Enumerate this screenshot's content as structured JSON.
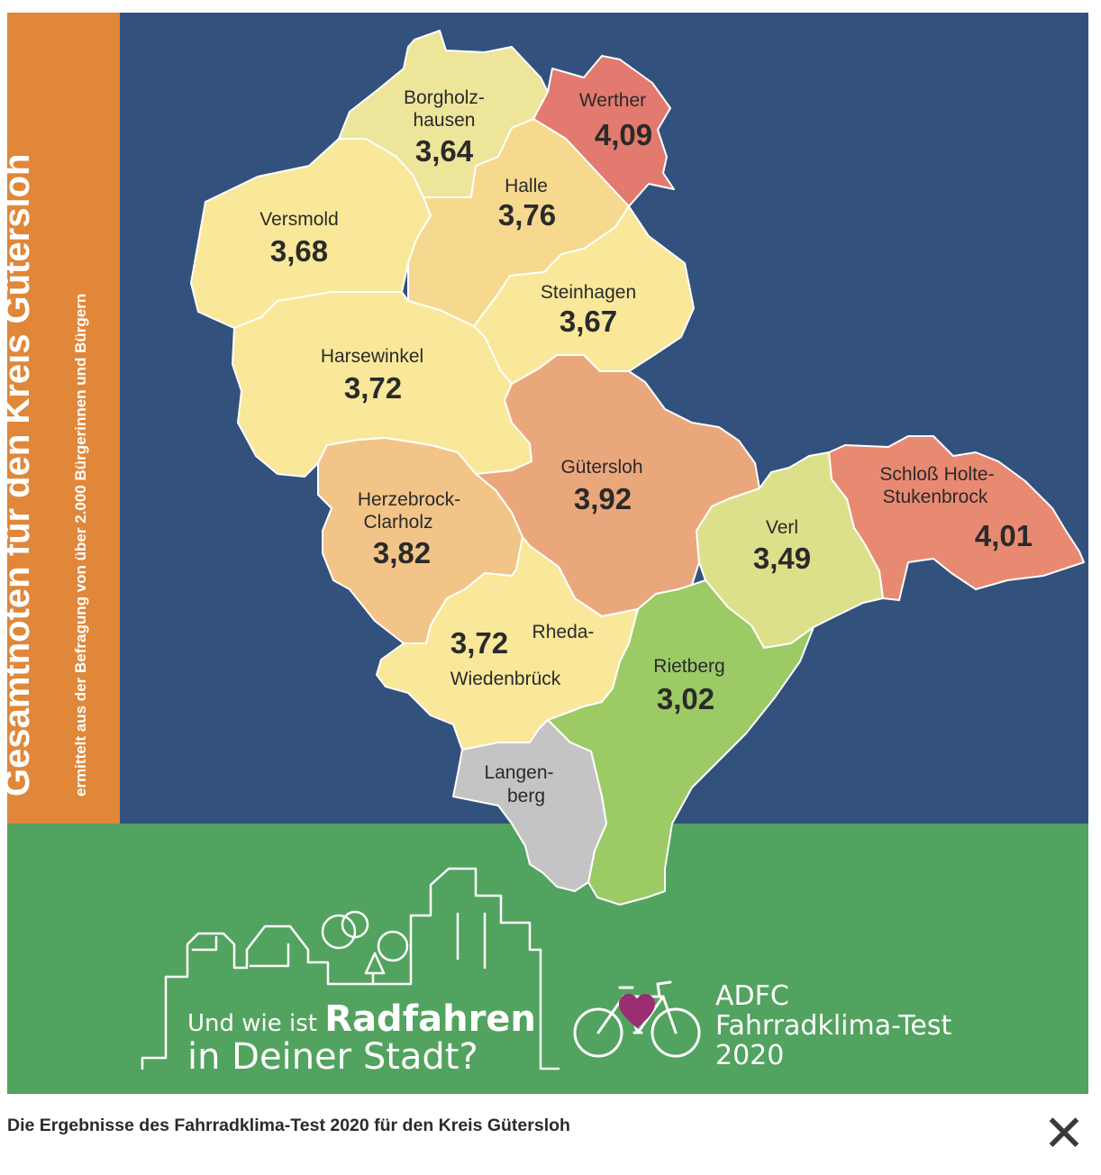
{
  "sidebar": {
    "title": "Gesamtnoten für den Kreis Gütersloh",
    "subtitle": "ermittelt aus der Befragung von über 2.000 Bürgerinnen und Bürgern"
  },
  "regions": {
    "borgholzhausen": {
      "name_line1": "Borgholz-",
      "name_line2": "hausen",
      "score": "3,64",
      "fill": "#EDE59A"
    },
    "werther": {
      "name": "Werther",
      "score": "4,09",
      "fill": "#E27A6F"
    },
    "versmold": {
      "name": "Versmold",
      "score": "3,68",
      "fill": "#F9E89A"
    },
    "halle": {
      "name": "Halle",
      "score": "3,76",
      "fill": "#F6D98E"
    },
    "steinhagen": {
      "name": "Steinhagen",
      "score": "3,67",
      "fill": "#F9E89A"
    },
    "harsewinkel": {
      "name": "Harsewinkel",
      "score": "3,72",
      "fill": "#F9E89A"
    },
    "guetersloh": {
      "name": "Gütersloh",
      "score": "3,92",
      "fill": "#EBA77C"
    },
    "schloss_holte": {
      "name_line1": "Schloß Holte-",
      "name_line2": "Stukenbrock",
      "score": "4,01",
      "fill": "#E88A71"
    },
    "herzebrock": {
      "name_line1": "Herzebrock-",
      "name_line2": "Clarholz",
      "score": "3,82",
      "fill": "#F2C487"
    },
    "verl": {
      "name": "Verl",
      "score": "3,49",
      "fill": "#DCE08A"
    },
    "rheda": {
      "name_line1": "Rheda-",
      "name_line2": "Wiedenbrück",
      "score": "3,72",
      "fill": "#F9E89A"
    },
    "rietberg": {
      "name": "Rietberg",
      "score": "3,02",
      "fill": "#9CCB66"
    },
    "langenberg": {
      "name_line1": "Langen-",
      "name_line2": "berg",
      "fill": "#C4C4C4"
    }
  },
  "footer": {
    "slogan_prefix": "Und wie ist",
    "slogan_bold": "Radfahren",
    "slogan_line2": "in Deiner Stadt?",
    "brand_line1": "ADFC",
    "brand_line2": "Fahrradklima-Test",
    "brand_line3": "2020"
  },
  "caption": "Die Ergebnisse des Fahrradklima-Test 2020 für den Kreis Gütersloh",
  "close_icon": "close-icon",
  "colors": {
    "sidebar": "#E0873A",
    "map_background": "#33517D",
    "footer": "#52A35F",
    "heart": "#9B2E72"
  }
}
